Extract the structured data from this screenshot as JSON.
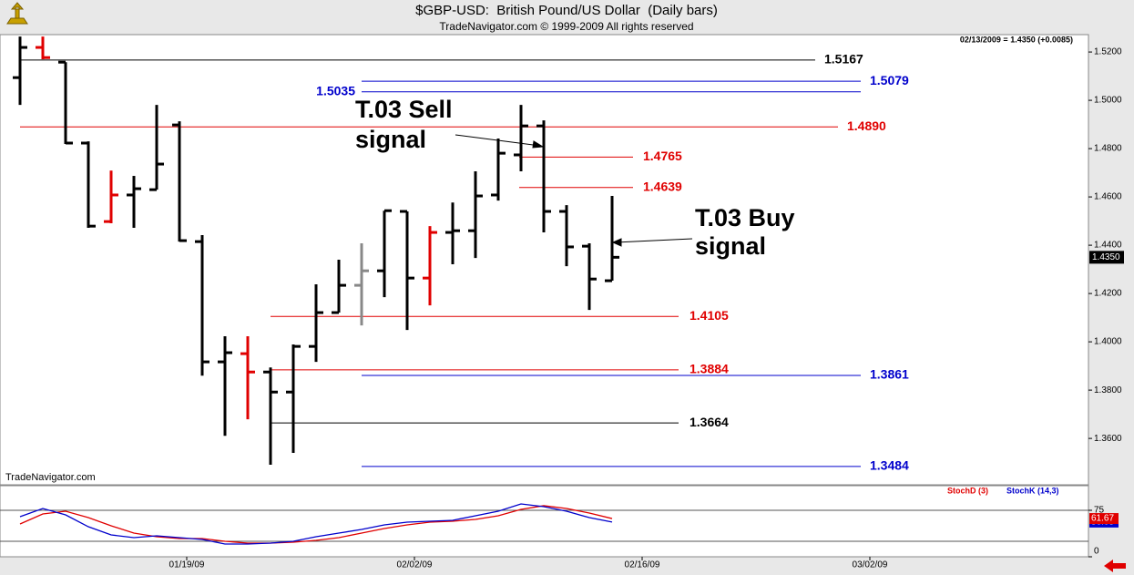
{
  "chart_data": [
    {
      "type": "ohlc",
      "title": "$GBP-USD:  British Pound/US Dollar  (Daily bars)",
      "subtitle": "TradeNavigator.com © 1999-2009 All rights reserved",
      "header": "02/13/2009 = 1.4350 (+0.0085)",
      "watermark": "TradeNavigator.com",
      "open": [
        1.5094,
        1.5219,
        1.5158,
        1.4823,
        1.4498,
        1.4608,
        1.463,
        1.4898,
        1.4415,
        1.3917,
        1.3951,
        1.3875,
        1.3792,
        1.3981,
        1.4121,
        1.4234,
        1.4294,
        1.454,
        1.4264,
        1.4453,
        1.446,
        1.4608,
        1.4774,
        1.4894,
        1.454,
        1.4396,
        1.4253
      ],
      "high": [
        1.5264,
        1.5264,
        1.5158,
        1.483,
        1.4709,
        1.4687,
        1.4981,
        1.4913,
        1.4442,
        1.4023,
        1.4023,
        1.3894,
        1.3989,
        1.4238,
        1.434,
        1.4408,
        1.4543,
        1.454,
        1.4479,
        1.4577,
        1.4706,
        1.4842,
        1.4981,
        1.4917,
        1.4566,
        1.4408,
        1.4604
      ],
      "low": [
        1.4981,
        1.517,
        1.4819,
        1.4472,
        1.4491,
        1.4472,
        1.463,
        1.4415,
        1.386,
        1.3611,
        1.3679,
        1.3491,
        1.354,
        1.3917,
        1.4121,
        1.4068,
        1.4185,
        1.4049,
        1.4151,
        1.4321,
        1.4347,
        1.4585,
        1.4706,
        1.4453,
        1.4313,
        1.4132,
        1.4253
      ],
      "close": [
        1.5219,
        1.5177,
        1.4823,
        1.4479,
        1.4608,
        1.4634,
        1.4736,
        1.4419,
        1.3917,
        1.3955,
        1.3875,
        1.3792,
        1.3981,
        1.4121,
        1.4234,
        1.4294,
        1.4543,
        1.4264,
        1.4453,
        1.446,
        1.4604,
        1.4781,
        1.4894,
        1.454,
        1.4393,
        1.426,
        1.435
      ],
      "colors": [
        "#000000",
        "#e00000",
        "#000000",
        "#000000",
        "#e00000",
        "#000000",
        "#000000",
        "#000000",
        "#000000",
        "#000000",
        "#e00000",
        "#000000",
        "#000000",
        "#000000",
        "#000000",
        "#888888",
        "#000000",
        "#000000",
        "#e00000",
        "#000000",
        "#000000",
        "#000000",
        "#000000",
        "#000000",
        "#000000",
        "#000000",
        "#000000"
      ],
      "ylim": [
        1.3408,
        1.5272
      ],
      "yticks": [
        {
          "value": 1.36,
          "label": "1.3600"
        },
        {
          "value": 1.38,
          "label": "1.3800"
        },
        {
          "value": 1.4,
          "label": "1.4000"
        },
        {
          "value": 1.42,
          "label": "1.4200"
        },
        {
          "value": 1.44,
          "label": "1.4400"
        },
        {
          "value": 1.46,
          "label": "1.4600"
        },
        {
          "value": 1.48,
          "label": "1.4800"
        },
        {
          "value": 1.5,
          "label": "1.5000"
        },
        {
          "value": 1.52,
          "label": "1.5200"
        }
      ],
      "levels": [
        {
          "value": 1.5167,
          "label": "1.5167",
          "color": "#000000"
        },
        {
          "value": 1.5079,
          "label": "1.5079",
          "color": "#0000cc"
        },
        {
          "value": 1.5035,
          "label": "1.5035",
          "color": "#0000cc"
        },
        {
          "value": 1.489,
          "label": "1.4890",
          "color": "#e00000"
        },
        {
          "value": 1.4765,
          "label": "1.4765",
          "color": "#e00000"
        },
        {
          "value": 1.4639,
          "label": "1.4639",
          "color": "#e00000"
        },
        {
          "value": 1.4105,
          "label": "1.4105",
          "color": "#e00000"
        },
        {
          "value": 1.3884,
          "label": "1.3884",
          "color": "#e00000"
        },
        {
          "value": 1.3861,
          "label": "1.3861",
          "color": "#0000cc"
        },
        {
          "value": 1.3664,
          "label": "1.3664",
          "color": "#000000"
        },
        {
          "value": 1.3484,
          "label": "1.3484",
          "color": "#0000cc"
        }
      ],
      "last_price": {
        "value": 1.435,
        "label": "1.4350"
      },
      "annotations": [
        {
          "text": [
            "T.03 Sell",
            "signal"
          ]
        },
        {
          "text": [
            "T.03 Buy",
            "signal"
          ]
        }
      ]
    },
    {
      "type": "line",
      "categories": [
        null,
        null,
        null,
        null,
        null,
        null,
        null,
        "01/19/09",
        null,
        null,
        null,
        null,
        null,
        null,
        null,
        null,
        null,
        "02/02/09",
        null,
        null,
        null,
        null,
        null,
        null,
        null,
        null,
        null,
        "02/16/09",
        null,
        null,
        null,
        null,
        null,
        null,
        null,
        null,
        null,
        "03/02/09",
        null,
        null,
        null,
        null,
        null,
        null,
        null,
        null,
        null
      ],
      "series": [
        {
          "name": "StochD (3)",
          "color": "#e00000",
          "values": [
            52.9,
            69.1,
            73.5,
            63.2,
            50.0,
            38.2,
            32.4,
            29.4,
            29.4,
            25.0,
            22.1,
            22.1,
            23.5,
            26.5,
            30.9,
            38.2,
            45.6,
            51.5,
            55.9,
            57.4,
            60.3,
            66.2,
            76.5,
            82.4,
            77.9,
            70.6,
            61.67,
            null,
            null,
            null,
            null,
            null,
            null,
            null,
            null,
            null,
            null,
            null,
            null,
            null,
            null,
            null,
            null,
            null,
            null,
            null,
            null
          ]
        },
        {
          "name": "StochK (14,3)",
          "color": "#0000cc",
          "values": [
            64.7,
            77.9,
            67.6,
            48.5,
            35.3,
            30.9,
            33.8,
            30.9,
            27.9,
            20.6,
            20.6,
            22.1,
            25.0,
            32.4,
            38.2,
            44.1,
            51.5,
            55.9,
            57.4,
            58.8,
            66.2,
            73.5,
            85.3,
            80.9,
            73.5,
            63.2,
            56.05,
            null,
            null,
            null,
            null,
            null,
            null,
            null,
            null,
            null,
            null,
            null,
            null,
            null,
            null,
            null,
            null,
            null,
            null,
            null,
            null
          ]
        }
      ],
      "ylim": [
        0,
        114.7
      ],
      "yticks": [
        0,
        75
      ],
      "guide_lines": [
        25,
        75
      ]
    }
  ]
}
